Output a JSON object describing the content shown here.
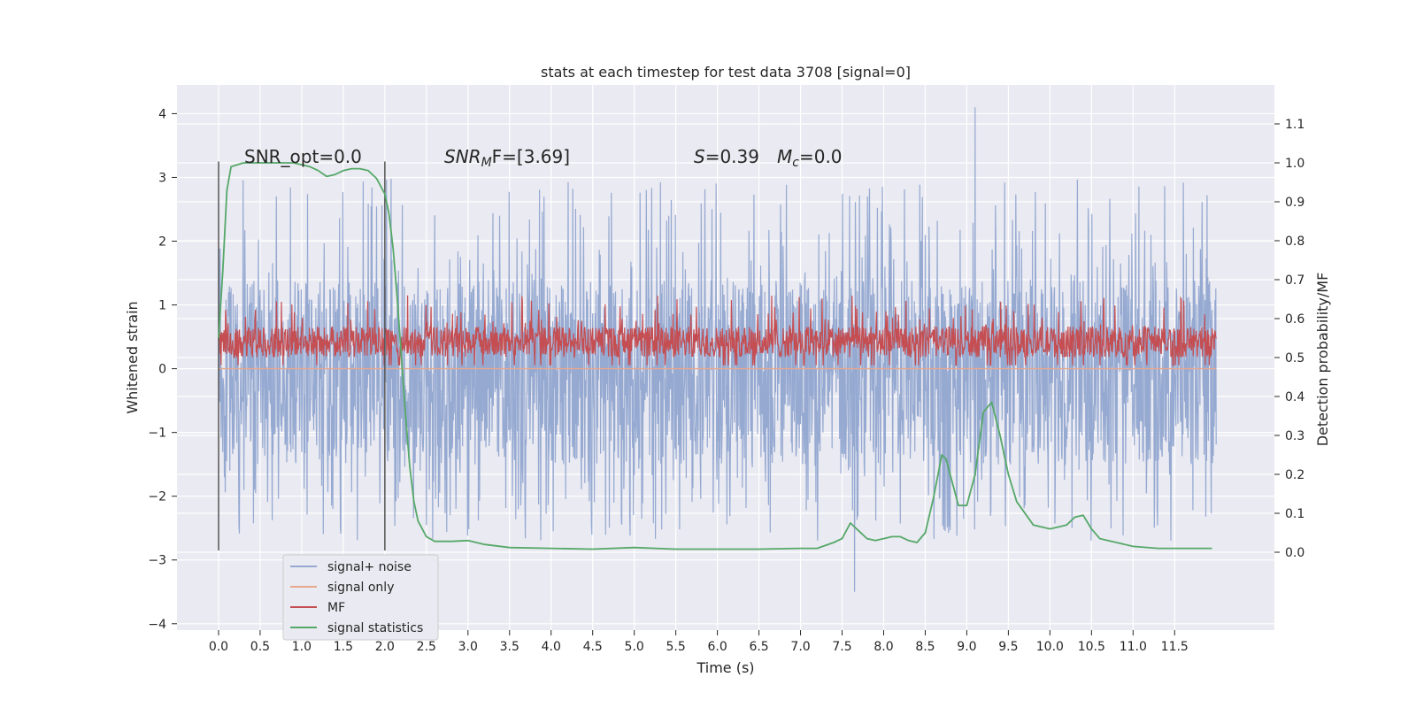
{
  "chart_data": {
    "type": "line",
    "title": "stats at each timestep for test data 3708 [signal=0]",
    "xlabel": "Time (s)",
    "ylabel_left": "Whitened strain",
    "ylabel_right": "Detection probability/MF",
    "xlim": [
      -0.5,
      12.7
    ],
    "ylim_left": [
      -4.1,
      4.45
    ],
    "ylim_right": [
      -0.2,
      1.2
    ],
    "x_ticks": [
      "0.0",
      "0.5",
      "1.0",
      "1.5",
      "2.0",
      "2.5",
      "3.0",
      "3.5",
      "4.0",
      "4.5",
      "5.0",
      "5.5",
      "6.0",
      "6.5",
      "7.0",
      "7.5",
      "8.0",
      "8.5",
      "9.0",
      "9.5",
      "10.0",
      "10.5",
      "11.0",
      "11.5"
    ],
    "y_left_ticks": [
      "4",
      "3",
      "2",
      "1",
      "0",
      "−1",
      "−2",
      "−3",
      "−4"
    ],
    "y_right_ticks": [
      "1.1",
      "1.0",
      "0.9",
      "0.8",
      "0.7",
      "0.6",
      "0.5",
      "0.4",
      "0.3",
      "0.2",
      "0.1",
      "0.0"
    ],
    "grid": true,
    "legend_position": "lower-left",
    "annotations": {
      "snr_opt": "SNR_opt=0.0",
      "snr_mf_sym": "SNR",
      "snr_mf_sub": "M",
      "snr_mf_rest": "F=[3.69]",
      "s_sym": "S",
      "s_val": "=0.39",
      "mc_sym": "M",
      "mc_sub": "c",
      "mc_val": "=0.0"
    },
    "vertical_lines": [
      0.0,
      2.0
    ],
    "series": [
      {
        "name": "signal+ noise",
        "color": "#95a9d1",
        "kind": "noise",
        "axis": "left",
        "x_range": [
          0,
          12
        ],
        "typical_range": [
          -1.5,
          1.4
        ],
        "extreme_range": [
          -3.5,
          4.1
        ]
      },
      {
        "name": "signal only",
        "color": "#e8a88d",
        "kind": "flat",
        "axis": "left",
        "x_range": [
          0,
          12
        ],
        "value": 0.0
      },
      {
        "name": "MF",
        "color": "#c44e52",
        "kind": "noise",
        "axis": "right",
        "x_range": [
          0,
          12
        ],
        "typical_range": [
          0.5,
          0.58
        ],
        "extreme_range": [
          0.48,
          0.66
        ]
      },
      {
        "name": "signal statistics",
        "color": "#55a868",
        "kind": "line",
        "axis": "right",
        "x": [
          0.0,
          0.05,
          0.1,
          0.15,
          0.3,
          0.6,
          0.9,
          1.1,
          1.2,
          1.3,
          1.4,
          1.5,
          1.6,
          1.7,
          1.8,
          1.9,
          2.0,
          2.05,
          2.1,
          2.15,
          2.2,
          2.25,
          2.3,
          2.35,
          2.4,
          2.5,
          2.6,
          2.8,
          3.0,
          3.2,
          3.5,
          4.0,
          4.5,
          5.0,
          5.5,
          6.0,
          6.5,
          7.0,
          7.2,
          7.4,
          7.5,
          7.6,
          7.7,
          7.8,
          7.9,
          8.0,
          8.1,
          8.2,
          8.3,
          8.4,
          8.5,
          8.6,
          8.7,
          8.75,
          8.8,
          8.9,
          9.0,
          9.1,
          9.2,
          9.3,
          9.4,
          9.5,
          9.6,
          9.8,
          10.0,
          10.2,
          10.3,
          10.4,
          10.5,
          10.6,
          10.8,
          11.0,
          11.3,
          11.6,
          11.95
        ],
        "y": [
          0.55,
          0.72,
          0.93,
          0.99,
          1.0,
          1.0,
          1.0,
          0.99,
          0.98,
          0.965,
          0.97,
          0.98,
          0.985,
          0.985,
          0.98,
          0.96,
          0.92,
          0.87,
          0.78,
          0.65,
          0.5,
          0.35,
          0.22,
          0.13,
          0.08,
          0.04,
          0.028,
          0.028,
          0.03,
          0.02,
          0.012,
          0.01,
          0.008,
          0.012,
          0.008,
          0.008,
          0.008,
          0.01,
          0.01,
          0.025,
          0.035,
          0.075,
          0.055,
          0.035,
          0.03,
          0.035,
          0.04,
          0.04,
          0.03,
          0.025,
          0.05,
          0.14,
          0.25,
          0.24,
          0.2,
          0.12,
          0.12,
          0.2,
          0.36,
          0.385,
          0.3,
          0.2,
          0.13,
          0.07,
          0.06,
          0.07,
          0.09,
          0.095,
          0.06,
          0.035,
          0.025,
          0.015,
          0.01,
          0.01,
          0.01
        ]
      }
    ]
  }
}
